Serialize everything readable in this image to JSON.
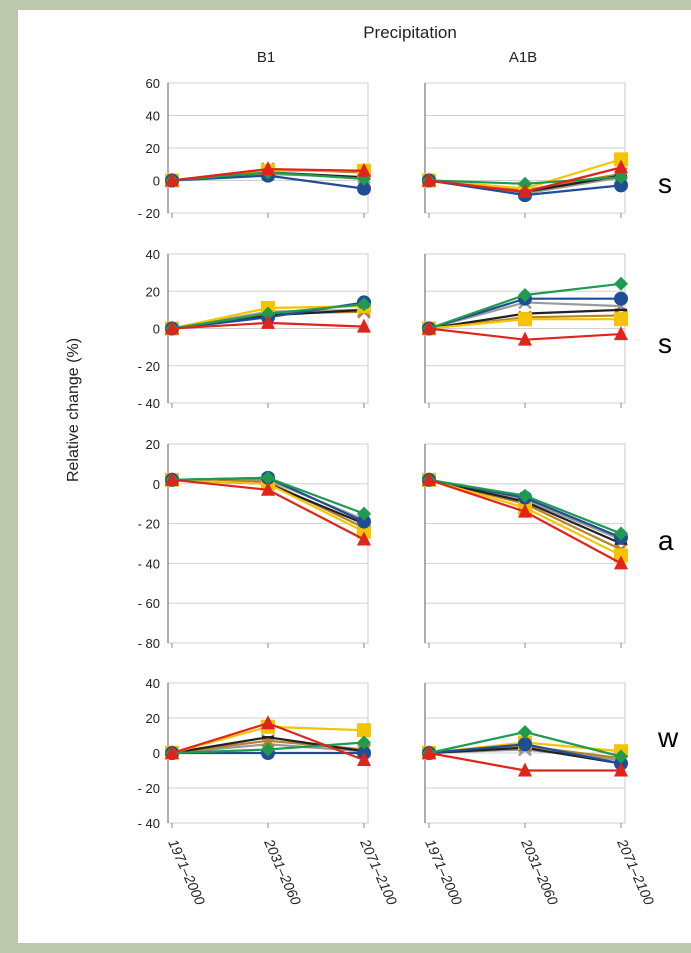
{
  "figure": {
    "title": "Precipitation",
    "ylabel": "Relative change (%)",
    "column_titles": [
      "B1",
      "A1B"
    ],
    "x_tick_labels": [
      "1971–2000",
      "2031–2060",
      "2071–2100"
    ]
  },
  "side_letters": [
    "s",
    "s",
    "a",
    "w"
  ],
  "series_styles": [
    {
      "color": "#f5c400",
      "marker": "square"
    },
    {
      "color": "#1f9b4f",
      "marker": "diamond"
    },
    {
      "color": "#1f4e96",
      "marker": "circle"
    },
    {
      "color": "#e0231b",
      "marker": "triangle"
    },
    {
      "color": "#222222",
      "marker": "line"
    },
    {
      "color": "#9a9a9a",
      "marker": "x"
    },
    {
      "color": "#b5822e",
      "marker": "x"
    }
  ],
  "chart_data": [
    {
      "type": "line",
      "panel": "row1-B1",
      "title": "B1",
      "categories": [
        "1971–2000",
        "2031–2060",
        "2071–2100"
      ],
      "ylim": [
        -20,
        60
      ],
      "yticks": [
        60,
        40,
        20,
        0,
        -20
      ],
      "grid": true,
      "series": [
        {
          "values": [
            0,
            6,
            6
          ]
        },
        {
          "values": [
            0,
            5,
            1
          ]
        },
        {
          "values": [
            0,
            3,
            -5
          ]
        },
        {
          "values": [
            0,
            7,
            6
          ]
        },
        {
          "values": [
            0,
            5,
            2
          ]
        },
        {
          "values": [
            0,
            4,
            2
          ]
        },
        {
          "values": [
            0,
            7,
            5
          ]
        }
      ]
    },
    {
      "type": "line",
      "panel": "row1-A1B",
      "title": "A1B",
      "categories": [
        "1971–2000",
        "2031–2060",
        "2071–2100"
      ],
      "ylim": [
        -20,
        60
      ],
      "yticks": [
        60,
        40,
        20,
        0,
        -20
      ],
      "grid": true,
      "series": [
        {
          "values": [
            0,
            -5,
            13
          ]
        },
        {
          "values": [
            0,
            -2,
            2
          ]
        },
        {
          "values": [
            0,
            -9,
            -3
          ]
        },
        {
          "values": [
            0,
            -7,
            8
          ]
        },
        {
          "values": [
            0,
            -7,
            3
          ]
        },
        {
          "values": [
            0,
            -8,
            2
          ]
        },
        {
          "values": [
            0,
            -6,
            4
          ]
        }
      ]
    },
    {
      "type": "line",
      "panel": "row2-B1",
      "categories": [
        "1971–2000",
        "2031–2060",
        "2071–2100"
      ],
      "ylim": [
        -40,
        40
      ],
      "yticks": [
        40,
        20,
        0,
        -20,
        -40
      ],
      "grid": true,
      "series": [
        {
          "values": [
            0,
            11,
            12
          ]
        },
        {
          "values": [
            0,
            8,
            13
          ]
        },
        {
          "values": [
            0,
            6,
            14
          ]
        },
        {
          "values": [
            0,
            3,
            1
          ]
        },
        {
          "values": [
            0,
            7,
            10
          ]
        },
        {
          "values": [
            0,
            9,
            10
          ]
        },
        {
          "values": [
            0,
            8,
            9
          ]
        }
      ]
    },
    {
      "type": "line",
      "panel": "row2-A1B",
      "categories": [
        "1971–2000",
        "2031–2060",
        "2071–2100"
      ],
      "ylim": [
        -40,
        40
      ],
      "yticks": [
        40,
        20,
        0,
        -20,
        -40
      ],
      "grid": true,
      "series": [
        {
          "values": [
            0,
            5,
            5
          ]
        },
        {
          "values": [
            0,
            18,
            24
          ]
        },
        {
          "values": [
            0,
            16,
            16
          ]
        },
        {
          "values": [
            0,
            -6,
            -3
          ]
        },
        {
          "values": [
            0,
            8,
            10
          ]
        },
        {
          "values": [
            0,
            14,
            12
          ]
        },
        {
          "values": [
            0,
            6,
            7
          ]
        }
      ]
    },
    {
      "type": "line",
      "panel": "row3-B1",
      "categories": [
        "1971–2000",
        "2031–2060",
        "2071–2100"
      ],
      "ylim": [
        -80,
        20
      ],
      "yticks": [
        20,
        0,
        -20,
        -40,
        -60,
        -80
      ],
      "grid": true,
      "series": [
        {
          "values": [
            2,
            0,
            -24
          ]
        },
        {
          "values": [
            2,
            3,
            -15
          ]
        },
        {
          "values": [
            2,
            3,
            -19
          ]
        },
        {
          "values": [
            2,
            -3,
            -28
          ]
        },
        {
          "values": [
            2,
            0,
            -20
          ]
        },
        {
          "values": [
            2,
            2,
            -18
          ]
        },
        {
          "values": [
            2,
            1,
            -22
          ]
        }
      ]
    },
    {
      "type": "line",
      "panel": "row3-A1B",
      "categories": [
        "1971–2000",
        "2031–2060",
        "2071–2100"
      ],
      "ylim": [
        -80,
        20
      ],
      "yticks": [
        20,
        0,
        -20,
        -40,
        -60,
        -80
      ],
      "grid": true,
      "series": [
        {
          "values": [
            2,
            -12,
            -36
          ]
        },
        {
          "values": [
            2,
            -6,
            -25
          ]
        },
        {
          "values": [
            2,
            -7,
            -27
          ]
        },
        {
          "values": [
            2,
            -14,
            -40
          ]
        },
        {
          "values": [
            2,
            -9,
            -30
          ]
        },
        {
          "values": [
            2,
            -8,
            -28
          ]
        },
        {
          "values": [
            2,
            -10,
            -33
          ]
        }
      ]
    },
    {
      "type": "line",
      "panel": "row4-B1",
      "categories": [
        "1971–2000",
        "2031–2060",
        "2071–2100"
      ],
      "ylim": [
        -40,
        40
      ],
      "yticks": [
        40,
        20,
        0,
        -20,
        -40
      ],
      "grid": true,
      "series": [
        {
          "values": [
            0,
            15,
            13
          ]
        },
        {
          "values": [
            0,
            2,
            6
          ]
        },
        {
          "values": [
            0,
            0,
            0
          ]
        },
        {
          "values": [
            0,
            17,
            -4
          ]
        },
        {
          "values": [
            0,
            9,
            1
          ]
        },
        {
          "values": [
            0,
            5,
            1
          ]
        },
        {
          "values": [
            0,
            7,
            2
          ]
        }
      ]
    },
    {
      "type": "line",
      "panel": "row4-A1B",
      "categories": [
        "1971–2000",
        "2031–2060",
        "2071–2100"
      ],
      "ylim": [
        -40,
        40
      ],
      "yticks": [
        40,
        20,
        0,
        -20,
        -40
      ],
      "grid": true,
      "series": [
        {
          "values": [
            0,
            6,
            1
          ]
        },
        {
          "values": [
            0,
            12,
            -2
          ]
        },
        {
          "values": [
            0,
            5,
            -6
          ]
        },
        {
          "values": [
            0,
            -10,
            -10
          ]
        },
        {
          "values": [
            0,
            3,
            -6
          ]
        },
        {
          "values": [
            0,
            2,
            -4
          ]
        },
        {
          "values": [
            0,
            4,
            -3
          ]
        }
      ]
    }
  ]
}
